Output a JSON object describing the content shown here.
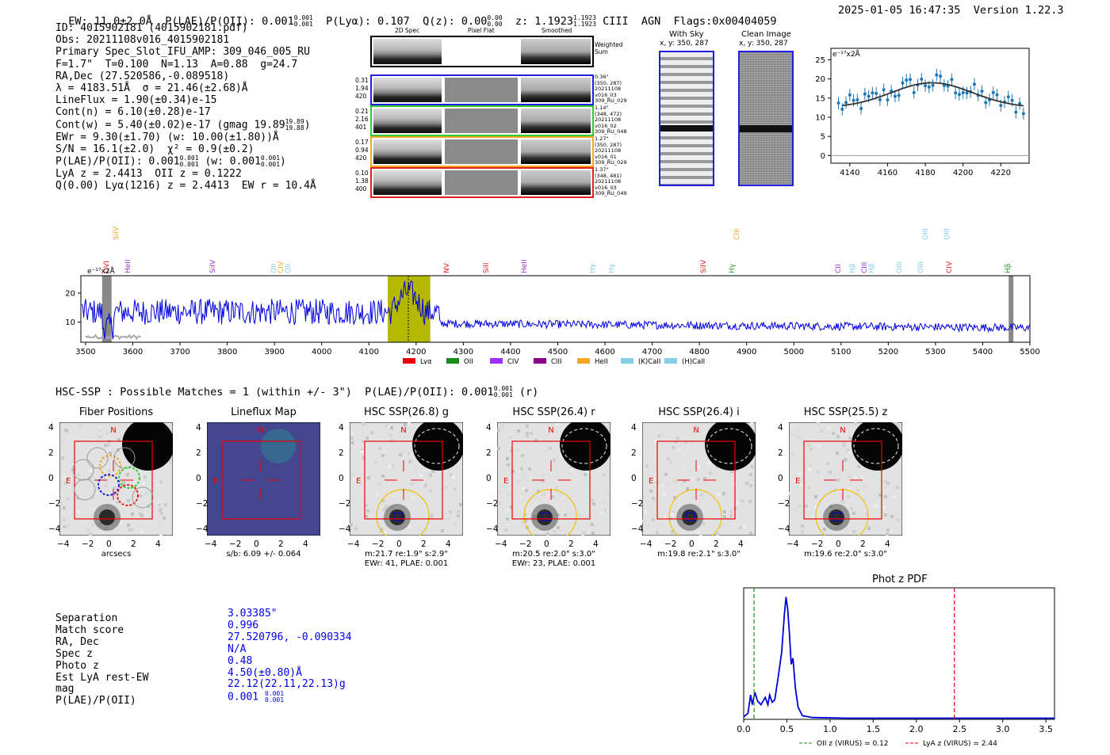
{
  "header": {
    "ew": "EW: 11.0±2.0Å",
    "plae_label": "P(LAE)/P(OII): 0.001",
    "plae_hi": "0.001",
    "plae_lo": "0.001",
    "plya": "P(Lyα): 0.107",
    "qz": "Q(z): 0.00",
    "qz_hi": "0.00",
    "qz_lo": "0.00",
    "z": "z: 1.1923",
    "z_hi": "1.1923",
    "z_lo": "1.1923",
    "line": "CIII",
    "agn": "AGN",
    "flags": "Flags:0x00404059",
    "timestamp": "2025-01-05 16:47:35",
    "version": "Version 1.22.3"
  },
  "info": {
    "id": "ID: 4015902181 (4015902181.pdf)",
    "obs": "Obs: 20211108v016_4015902181",
    "primary": "Primary Spec_Slot_IFU_AMP: 309_046_005_RU",
    "fiber": "F=1.7\"  T=0.100  N=1.13  A=0.88  g=24.7",
    "radec": "RA,Dec (27.520586,-0.089518)",
    "lambda": "λ = 4183.51Å  σ = 21.46(±2.68)Å",
    "lineflux": "LineFlux = 1.90(±0.34)e-15",
    "contn": "Cont(n) = 6.10(±0.28)e-17",
    "contw": "Cont(w) = 5.40(±0.02)e-17 (gmag 19.89",
    "contw_hi": "19.89",
    "contw_lo": "19.88",
    "ewr": "EWr = 9.30(±1.70) (w: 10.00(±1.80))Å",
    "sn": "S/N = 16.1(±2.0)  χ² = 0.9(±0.2)",
    "plae": "P(LAE)/P(OII): 0.001",
    "plae_hi": "0.001",
    "plae_lo": "0.001",
    "plae_w": "(w: 0.001",
    "plae_w_hi": "0.001",
    "plae_w_lo": "0.001",
    "lya": "LyA z = 2.4413  OII z = 0.1222",
    "q": "Q(0.00) Lyα(1216) z = 2.4413  EW r = 10.4Å"
  },
  "cutouts": {
    "col_2d": "2D Spec",
    "col_flat": "Pixel Flat",
    "col_smooth": "Smoothed",
    "weighted": "Weighted Sum",
    "rows": [
      {
        "w": "0.31",
        "n": "1.94",
        "d": "420",
        "sep": "0.36\"",
        "xy": "(350, 287)",
        "date": "20211108",
        "obs": "v016_03",
        "amp": "309_RU_029",
        "color": "#1f1fe0"
      },
      {
        "w": "0.21",
        "n": "2.16",
        "d": "401",
        "sep": "1.14\"",
        "xy": "(348, 472)",
        "date": "20211108",
        "obs": "v016_02",
        "amp": "309_RU_048",
        "color": "#2ecc2e"
      },
      {
        "w": "0.17",
        "n": "0.94",
        "d": "420",
        "sep": "1.27\"",
        "xy": "(350, 287)",
        "date": "20211108",
        "obs": "v016_01",
        "amp": "309_RU_029",
        "color": "#f5a623"
      },
      {
        "w": "0.10",
        "n": "1.38",
        "d": "400",
        "sep": "1.37\"",
        "xy": "(348, 481)",
        "date": "20211108",
        "obs": "v016_03",
        "amp": "309_RU_049",
        "color": "#e02020"
      }
    ]
  },
  "ccd": {
    "with_sky": "With Sky",
    "with_sky_xy": "x, y: 350, 287",
    "clean": "Clean Image",
    "clean_xy": "x, y: 350, 287"
  },
  "zoom": {
    "unit": "e⁻¹⁷x2Å",
    "x_ticks": [
      "4140",
      "4160",
      "4180",
      "4200",
      "4220"
    ],
    "y_ticks": [
      "25",
      "20",
      "15",
      "10",
      "5",
      "0"
    ],
    "fit_center": 4183.5,
    "fit_sigma": 21.46,
    "fit_amp": 6.5,
    "fit_cont": 12.5
  },
  "full_spectrum": {
    "unit": "e⁻¹⁷x2Å",
    "x_ticks": [
      "3500",
      "3600",
      "3700",
      "3800",
      "3900",
      "4000",
      "4100",
      "4200",
      "4300",
      "4400",
      "4500",
      "4600",
      "4700",
      "4800",
      "4900",
      "5000",
      "5100",
      "5200",
      "5300",
      "5400",
      "5500"
    ],
    "y_ticks": [
      "20",
      "10"
    ],
    "lines_top": [
      {
        "label": "SiIV",
        "wave": 3565,
        "color": "#f5a623"
      },
      {
        "label": "CIII",
        "wave": 4880,
        "color": "#f5a623"
      },
      {
        "label": "OIII",
        "wave": 5280,
        "color": "#87ceeb"
      },
      {
        "label": "OIII",
        "wave": 5325,
        "color": "#87ceeb"
      }
    ],
    "lines_mid": [
      {
        "label": "OVI",
        "wave": 3545,
        "color": "#e02020"
      },
      {
        "label": "HeII",
        "wave": 3590,
        "color": "#9b30d0"
      },
      {
        "label": "SiIV",
        "wave": 3770,
        "color": "#9b30d0"
      },
      {
        "label": "OII",
        "wave": 3900,
        "color": "#87ceeb"
      },
      {
        "label": "CIV",
        "wave": 3915,
        "color": "#f5a623"
      },
      {
        "label": "OII",
        "wave": 3930,
        "color": "#87ceeb"
      },
      {
        "label": "NV",
        "wave": 4265,
        "color": "#e02020"
      },
      {
        "label": "SiII",
        "wave": 4350,
        "color": "#e02020"
      },
      {
        "label": "HeII",
        "wave": 4430,
        "color": "#9b30d0"
      },
      {
        "label": "Hγ",
        "wave": 4575,
        "color": "#87ceeb"
      },
      {
        "label": "Hγ",
        "wave": 4615,
        "color": "#87ceeb"
      },
      {
        "label": "SiIV",
        "wave": 4810,
        "color": "#e02020"
      },
      {
        "label": "Hγ",
        "wave": 4870,
        "color": "#2ca02c"
      },
      {
        "label": "CII",
        "wave": 5095,
        "color": "#9b30d0"
      },
      {
        "label": "Hβ",
        "wave": 5125,
        "color": "#87ceeb"
      },
      {
        "label": "CIII",
        "wave": 5150,
        "color": "#9b30d0"
      },
      {
        "label": "Hβ",
        "wave": 5165,
        "color": "#87ceeb"
      },
      {
        "label": "OIII",
        "wave": 5225,
        "color": "#87ceeb"
      },
      {
        "label": "OIII",
        "wave": 5270,
        "color": "#87ceeb"
      },
      {
        "label": "CIV",
        "wave": 5330,
        "color": "#e02020"
      },
      {
        "label": "Hβ",
        "wave": 5455,
        "color": "#2ca02c"
      }
    ],
    "legend": [
      {
        "label": "Lyα",
        "color": "#e8000b"
      },
      {
        "label": "OII",
        "color": "#1a8c1a"
      },
      {
        "label": "CIV",
        "color": "#9b30ff"
      },
      {
        "label": "CIII",
        "color": "#8b008b"
      },
      {
        "label": "HeII",
        "color": "#f5a623"
      },
      {
        "label": "(K)CaII",
        "color": "#87ceeb"
      },
      {
        "label": "(H)CaII",
        "color": "#87ceeb"
      }
    ]
  },
  "hsc": {
    "summary": "HSC-SSP : Possible Matches = 1 (within +/- 3\")  P(LAE)/P(OII): 0.001",
    "summary_hi": "0.001",
    "summary_lo": "0.001",
    "summary_tail": "(r)",
    "panels": [
      {
        "title": "Fiber Positions",
        "cap1": "arcsecs",
        "cap2": ""
      },
      {
        "title": "Lineflux Map",
        "cap1": "s/b: 6.09 +/- 0.064",
        "cap2": ""
      },
      {
        "title": "HSC SSP(26.8) g",
        "cap1": "m:21.7  re:1.9\"  s:2.9\"",
        "cap2": "EWr: 41, PLAE: 0.001"
      },
      {
        "title": "HSC SSP(26.4) r",
        "cap1": "m:20.5  re:2.0\"  s:3.0\"",
        "cap2": "EWr: 23, PLAE: 0.001"
      },
      {
        "title": "HSC SSP(26.4) i",
        "cap1": "m:19.8  re:2.1\"  s:3.0\"",
        "cap2": ""
      },
      {
        "title": "HSC SSP(25.5) z",
        "cap1": "m:19.6  re:2.0\"  s:3.0\"",
        "cap2": ""
      }
    ],
    "y_ticks": [
      "4",
      "2",
      "0",
      "−2",
      "−4"
    ],
    "x_ticks": [
      "−4",
      "−2",
      "0",
      "2",
      "4"
    ],
    "n_label": "N",
    "e_label": "E"
  },
  "match": {
    "labels": [
      "Separation",
      "Match score",
      "RA, Dec",
      "Spec z",
      "Photo z",
      "Est LyA rest-EW",
      "mag",
      "P(LAE)/P(OII)"
    ],
    "values": [
      "3.03385\"",
      "0.996",
      "27.520796, -0.090334",
      "N/A",
      "0.48",
      "4.50(±0.80)Å",
      "22.12(22.11,22.13)g",
      "0.001"
    ],
    "plae_hi": "0.001",
    "plae_lo": "0.001"
  },
  "photz": {
    "title": "Phot z PDF",
    "x_ticks": [
      "0.0",
      "0.5",
      "1.0",
      "1.5",
      "2.0",
      "2.5",
      "3.0",
      "3.5"
    ],
    "oii_z": 0.12,
    "lya_z": 2.44,
    "legend_oii": "OII z (VIRUS) = 0.12",
    "legend_lya": "LyA z (VIRUS) = 2.44"
  }
}
